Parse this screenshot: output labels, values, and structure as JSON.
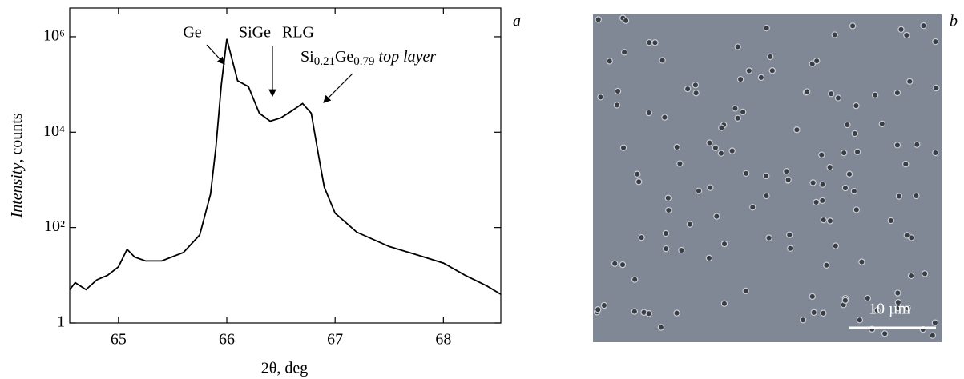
{
  "chart_data": {
    "type": "line",
    "panel_label": "a",
    "xlabel": "2θ, deg",
    "ylabel": [
      "Intensity",
      ", counts"
    ],
    "log_scale": true,
    "color": "#000000",
    "xlim": [
      64.55,
      68.53
    ],
    "xticks": [
      65,
      66,
      67,
      68
    ],
    "ylim": [
      1,
      4000000
    ],
    "yticks": [
      1,
      {
        "value": 100,
        "label": "10²"
      },
      {
        "value": 10000,
        "label": "10⁴"
      },
      {
        "value": 1000000,
        "label": "10⁶"
      }
    ],
    "x": [
      64.55,
      64.6,
      64.7,
      64.8,
      64.9,
      65.0,
      65.08,
      65.15,
      65.25,
      65.4,
      65.6,
      65.75,
      65.85,
      65.9,
      65.95,
      66.0,
      66.04,
      66.1,
      66.2,
      66.3,
      66.4,
      66.5,
      66.6,
      66.7,
      66.78,
      66.85,
      66.9,
      67.0,
      67.2,
      67.5,
      67.8,
      68.0,
      68.2,
      68.4,
      68.53
    ],
    "series": [
      {
        "values": [
          5,
          7,
          5,
          8,
          10,
          15,
          35,
          24,
          20,
          20,
          30,
          70,
          500,
          5000,
          100000,
          900000,
          400000,
          120000,
          90000,
          25000,
          17000,
          20000,
          28000,
          40000,
          25000,
          3000,
          700,
          200,
          80,
          40,
          25,
          18,
          10,
          6,
          4
        ]
      }
    ],
    "annotations": [
      "Ge",
      "SiGe",
      "RLG"
    ],
    "top_layer_label": [
      "Si",
      "0.21",
      "Ge",
      "0.79",
      "top layer"
    ]
  },
  "image": {
    "panel_label": "b",
    "scale_bar_label": "10 µm"
  }
}
